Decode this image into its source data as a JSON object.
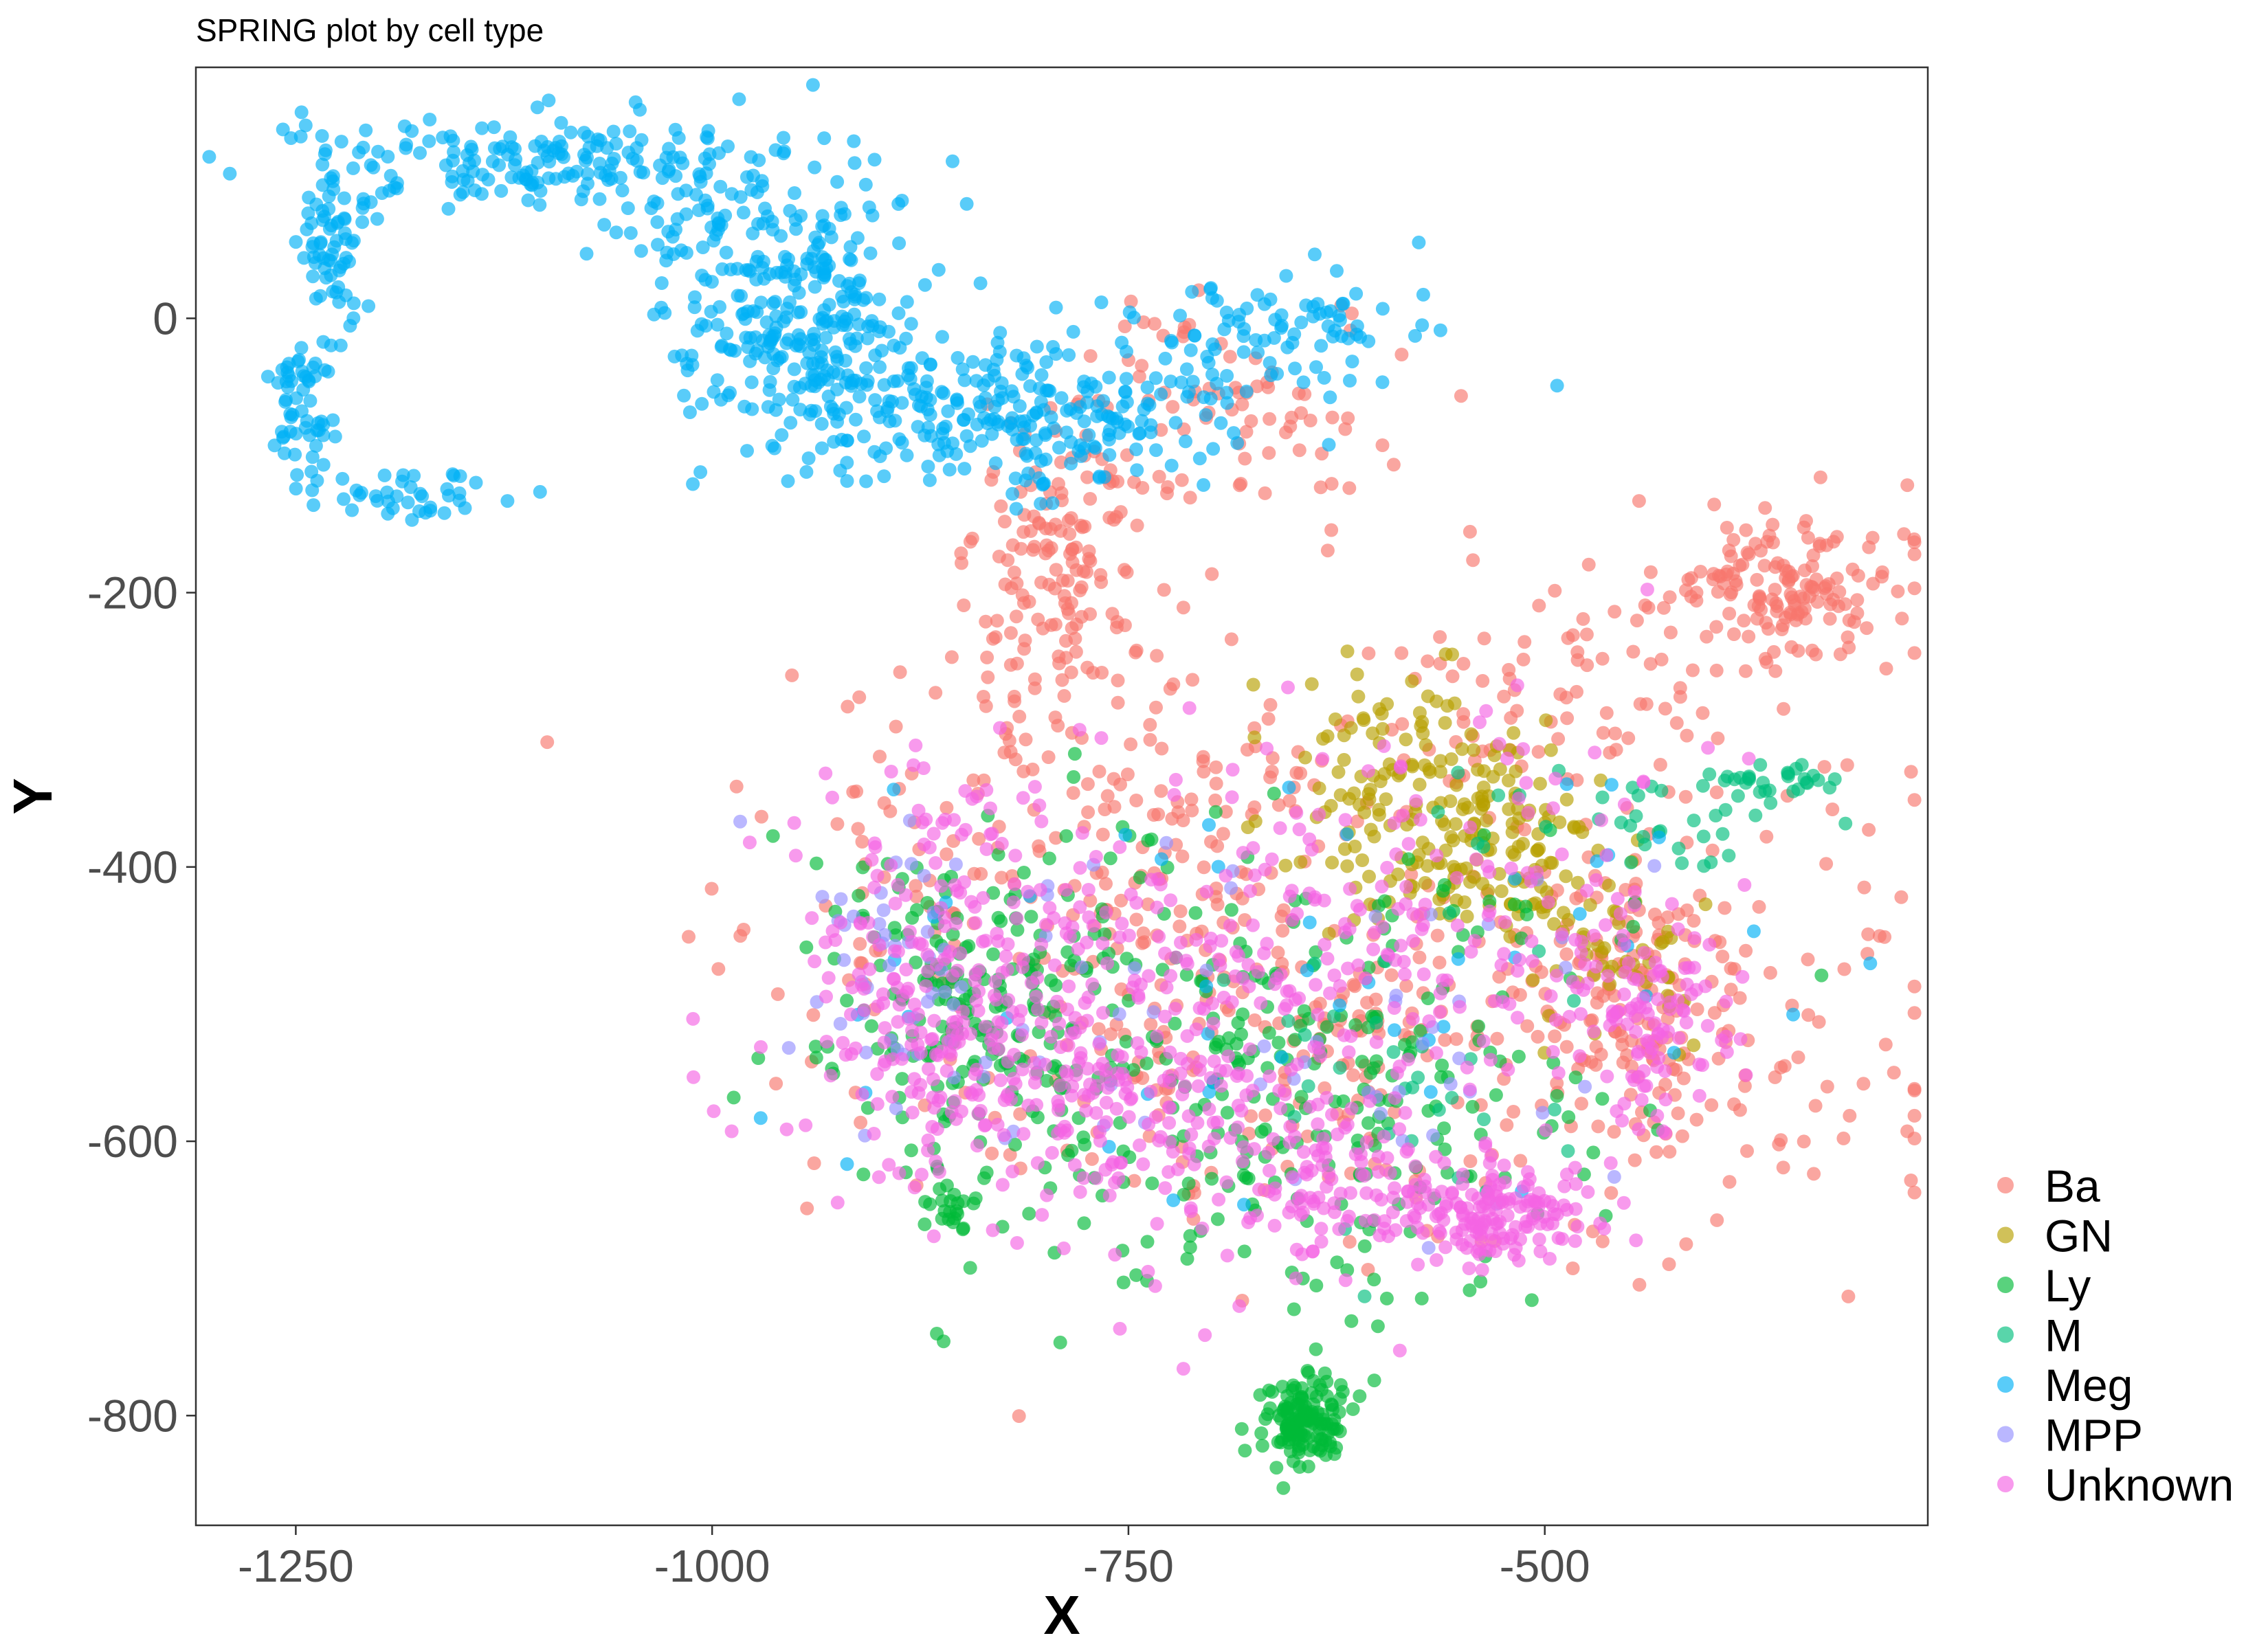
{
  "chart_data": {
    "type": "scatter",
    "title": "SPRING plot by cell type",
    "xlabel": "X",
    "ylabel": "Y",
    "xlim": [
      -1310,
      -270
    ],
    "ylim": [
      -880,
      183
    ],
    "xticks": [
      -1250,
      -1000,
      -750,
      -500
    ],
    "xtick_labels": [
      "-1250",
      "-1000",
      "-750",
      "-500"
    ],
    "yticks": [
      0,
      -200,
      -400,
      -600,
      -800
    ],
    "ytick_labels": [
      "0",
      "-200",
      "-400",
      "-600",
      "-800"
    ],
    "grid": false,
    "legend_position": "right-bottom",
    "point_opacity": 0.65,
    "series": [
      {
        "name": "Ba",
        "color": "#F8766D",
        "clusters": [
          {
            "cx": -790,
            "cy": -200,
            "sx": 28,
            "sy": 70,
            "n": 160
          },
          {
            "cx": -540,
            "cy": -470,
            "sx": 140,
            "sy": 110,
            "n": 260
          },
          {
            "cx": -440,
            "cy": -500,
            "sx": 30,
            "sy": 55,
            "n": 110
          },
          {
            "cx": -360,
            "cy": -195,
            "sx": 35,
            "sy": 25,
            "n": 150
          },
          {
            "cx": -690,
            "cy": -70,
            "sx": 45,
            "sy": 40,
            "n": 80
          },
          {
            "cx": -760,
            "cy": -400,
            "sx": 90,
            "sy": 80,
            "n": 200
          },
          {
            "cx": -460,
            "cy": -260,
            "sx": 60,
            "sy": 45,
            "n": 60
          },
          {
            "cx": -640,
            "cy": -560,
            "sx": 150,
            "sy": 60,
            "n": 120
          }
        ]
      },
      {
        "name": "GN",
        "color": "#B79F00",
        "clusters": [
          {
            "cx": -580,
            "cy": -340,
            "sx": 40,
            "sy": 45,
            "n": 160
          },
          {
            "cx": -520,
            "cy": -400,
            "sx": 35,
            "sy": 30,
            "n": 80
          },
          {
            "cx": -450,
            "cy": -470,
            "sx": 25,
            "sy": 35,
            "n": 40
          }
        ]
      },
      {
        "name": "Ly",
        "color": "#00BA38",
        "clusters": [
          {
            "cx": -645,
            "cy": -805,
            "sx": 12,
            "sy": 18,
            "n": 150
          },
          {
            "cx": -850,
            "cy": -500,
            "sx": 40,
            "sy": 60,
            "n": 150
          },
          {
            "cx": -720,
            "cy": -520,
            "sx": 90,
            "sy": 80,
            "n": 200
          },
          {
            "cx": -600,
            "cy": -560,
            "sx": 80,
            "sy": 80,
            "n": 120
          },
          {
            "cx": -855,
            "cy": -648,
            "sx": 7,
            "sy": 8,
            "n": 20
          },
          {
            "cx": -700,
            "cy": -640,
            "sx": 60,
            "sy": 50,
            "n": 25
          }
        ]
      },
      {
        "name": "M",
        "color": "#00BF7D",
        "clusters": [
          {
            "cx": -440,
            "cy": -360,
            "sx": 60,
            "sy": 20,
            "n": 40
          },
          {
            "cx": -560,
            "cy": -560,
            "sx": 60,
            "sy": 60,
            "n": 30
          },
          {
            "cx": -360,
            "cy": -338,
            "sx": 25,
            "sy": 6,
            "n": 25
          }
        ]
      },
      {
        "name": "Meg",
        "color": "#00B0F6",
        "clusters": [
          {
            "cx": -1100,
            "cy": 115,
            "sx": 80,
            "sy": 15,
            "n": 170
          },
          {
            "cx": -1225,
            "cy": 55,
            "sx": 12,
            "sy": 30,
            "n": 70
          },
          {
            "cx": -1245,
            "cy": -60,
            "sx": 10,
            "sy": 28,
            "n": 60
          },
          {
            "cx": -1185,
            "cy": -130,
            "sx": 28,
            "sy": 10,
            "n": 40
          },
          {
            "cx": -950,
            "cy": 0,
            "sx": 35,
            "sy": 45,
            "n": 280
          },
          {
            "cx": -870,
            "cy": -60,
            "sx": 40,
            "sy": 30,
            "n": 120
          },
          {
            "cx": -790,
            "cy": -80,
            "sx": 40,
            "sy": 25,
            "n": 120
          },
          {
            "cx": -690,
            "cy": -30,
            "sx": 50,
            "sy": 30,
            "n": 90
          },
          {
            "cx": -630,
            "cy": 0,
            "sx": 20,
            "sy": 12,
            "n": 25
          },
          {
            "cx": -640,
            "cy": -500,
            "sx": 150,
            "sy": 100,
            "n": 50
          },
          {
            "cx": -1010,
            "cy": 70,
            "sx": 30,
            "sy": 30,
            "n": 60
          }
        ]
      },
      {
        "name": "MPP",
        "color": "#9590FF",
        "clusters": [
          {
            "cx": -880,
            "cy": -490,
            "sx": 25,
            "sy": 50,
            "n": 40
          },
          {
            "cx": -700,
            "cy": -480,
            "sx": 120,
            "sy": 80,
            "n": 40
          },
          {
            "cx": -540,
            "cy": -560,
            "sx": 60,
            "sy": 60,
            "n": 20
          }
        ]
      },
      {
        "name": "Unknown",
        "color": "#F564E3",
        "clusters": [
          {
            "cx": -530,
            "cy": -648,
            "sx": 30,
            "sy": 20,
            "n": 150
          },
          {
            "cx": -620,
            "cy": -640,
            "sx": 30,
            "sy": 25,
            "n": 80
          },
          {
            "cx": -440,
            "cy": -510,
            "sx": 25,
            "sy": 40,
            "n": 100
          },
          {
            "cx": -850,
            "cy": -480,
            "sx": 50,
            "sy": 70,
            "n": 220
          },
          {
            "cx": -730,
            "cy": -520,
            "sx": 90,
            "sy": 90,
            "n": 230
          },
          {
            "cx": -580,
            "cy": -450,
            "sx": 90,
            "sy": 90,
            "n": 180
          },
          {
            "cx": -780,
            "cy": -590,
            "sx": 60,
            "sy": 30,
            "n": 80
          }
        ]
      }
    ]
  }
}
